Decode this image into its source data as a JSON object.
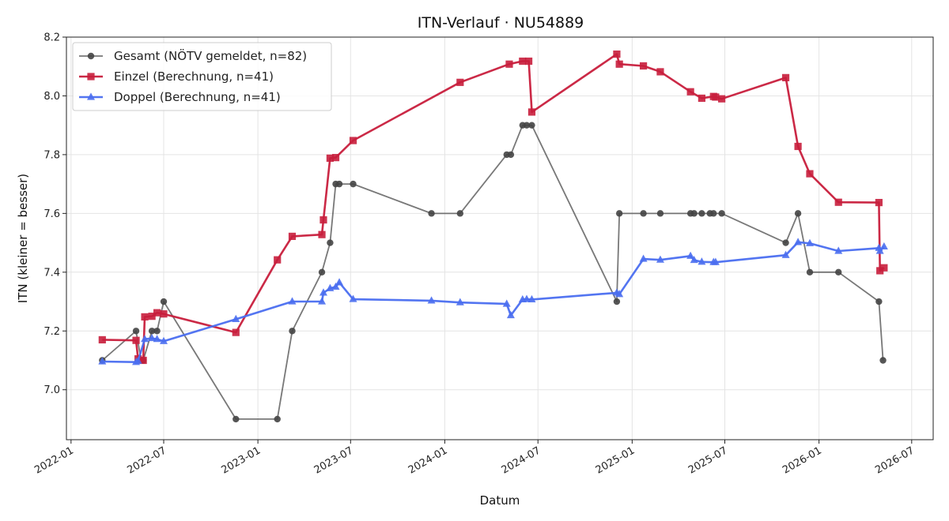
{
  "chart_data": {
    "type": "line",
    "title": "ITN-Verlauf · NU54889",
    "xlabel": "Datum",
    "ylabel": "ITN  (kleiner = besser)",
    "x_type": "date",
    "xlim": [
      "2021-12-23",
      "2026-08-12"
    ],
    "ylim": [
      6.83,
      8.2
    ],
    "y_ticks": [
      7.0,
      7.2,
      7.4,
      7.6,
      7.8,
      8.0,
      8.2
    ],
    "x_ticks": [
      "2022-01-01",
      "2022-07-01",
      "2023-01-01",
      "2023-07-01",
      "2024-01-01",
      "2024-07-01",
      "2025-01-01",
      "2025-07-01",
      "2026-01-01",
      "2026-07-01"
    ],
    "x_tick_labels": [
      "2022-01",
      "2022-07",
      "2023-01",
      "2023-07",
      "2024-01",
      "2024-07",
      "2025-01",
      "2025-07",
      "2026-01",
      "2026-07"
    ],
    "grid": true,
    "legend_position": "top-left",
    "series": [
      {
        "name": "Gesamt (NÖTV gemeldet, n=82)",
        "color": "#444444",
        "marker": "circle",
        "points": [
          [
            "2022-03-03",
            7.1
          ],
          [
            "2022-05-08",
            7.2
          ],
          [
            "2022-05-18",
            7.1
          ],
          [
            "2022-05-22",
            7.1
          ],
          [
            "2022-06-08",
            7.2
          ],
          [
            "2022-06-18",
            7.2
          ],
          [
            "2022-07-01",
            7.3
          ],
          [
            "2022-11-19",
            6.9
          ],
          [
            "2023-02-08",
            6.9
          ],
          [
            "2023-03-09",
            7.2
          ],
          [
            "2023-05-06",
            7.4
          ],
          [
            "2023-05-22",
            7.5
          ],
          [
            "2023-06-02",
            7.7
          ],
          [
            "2023-06-09",
            7.7
          ],
          [
            "2023-07-06",
            7.7
          ],
          [
            "2023-12-06",
            7.6
          ],
          [
            "2024-01-31",
            7.6
          ],
          [
            "2024-05-01",
            7.8
          ],
          [
            "2024-05-09",
            7.8
          ],
          [
            "2024-06-01",
            7.9
          ],
          [
            "2024-06-09",
            7.9
          ],
          [
            "2024-06-19",
            7.9
          ],
          [
            "2024-12-02",
            7.3
          ],
          [
            "2024-12-07",
            7.6
          ],
          [
            "2025-01-23",
            7.6
          ],
          [
            "2025-02-25",
            7.6
          ],
          [
            "2025-04-25",
            7.6
          ],
          [
            "2025-05-02",
            7.6
          ],
          [
            "2025-05-17",
            7.6
          ],
          [
            "2025-06-02",
            7.6
          ],
          [
            "2025-06-09",
            7.6
          ],
          [
            "2025-06-25",
            7.6
          ],
          [
            "2025-10-28",
            7.5
          ],
          [
            "2025-11-21",
            7.6
          ],
          [
            "2025-12-14",
            7.4
          ],
          [
            "2026-02-08",
            7.4
          ],
          [
            "2026-04-28",
            7.3
          ],
          [
            "2026-05-06",
            7.1
          ]
        ]
      },
      {
        "name": "Einzel (Berechnung, n=41)",
        "color": "#c81e3c",
        "marker": "square",
        "points": [
          [
            "2022-03-03",
            7.17
          ],
          [
            "2022-05-08",
            7.168
          ],
          [
            "2022-05-12",
            7.105
          ],
          [
            "2022-05-22",
            7.1
          ],
          [
            "2022-05-25",
            7.248
          ],
          [
            "2022-06-08",
            7.25
          ],
          [
            "2022-06-18",
            7.262
          ],
          [
            "2022-07-01",
            7.258
          ],
          [
            "2022-11-19",
            7.195
          ],
          [
            "2023-02-08",
            7.442
          ],
          [
            "2023-03-09",
            7.522
          ],
          [
            "2023-05-06",
            7.528
          ],
          [
            "2023-05-09",
            7.578
          ],
          [
            "2023-05-22",
            7.788
          ],
          [
            "2023-06-02",
            7.79
          ],
          [
            "2023-07-06",
            7.848
          ],
          [
            "2024-01-31",
            8.046
          ],
          [
            "2024-05-06",
            8.108
          ],
          [
            "2024-06-01",
            8.118
          ],
          [
            "2024-06-13",
            8.118
          ],
          [
            "2024-06-19",
            7.945
          ],
          [
            "2024-12-02",
            8.142
          ],
          [
            "2024-12-07",
            8.108
          ],
          [
            "2025-01-23",
            8.102
          ],
          [
            "2025-02-25",
            8.082
          ],
          [
            "2025-04-25",
            8.014
          ],
          [
            "2025-05-17",
            7.992
          ],
          [
            "2025-06-09",
            7.998
          ],
          [
            "2025-06-13",
            7.996
          ],
          [
            "2025-06-25",
            7.99
          ],
          [
            "2025-10-28",
            8.062
          ],
          [
            "2025-11-21",
            7.828
          ],
          [
            "2025-12-14",
            7.735
          ],
          [
            "2026-02-08",
            7.638
          ],
          [
            "2026-04-28",
            7.637
          ],
          [
            "2026-04-30",
            7.405
          ],
          [
            "2026-05-08",
            7.415
          ]
        ]
      },
      {
        "name": "Doppel (Berechnung, n=41)",
        "color": "#4a6ef0",
        "marker": "triangle",
        "points": [
          [
            "2022-03-03",
            7.096
          ],
          [
            "2022-05-08",
            7.094
          ],
          [
            "2022-05-12",
            7.098
          ],
          [
            "2022-05-25",
            7.172
          ],
          [
            "2022-06-08",
            7.175
          ],
          [
            "2022-06-18",
            7.172
          ],
          [
            "2022-07-01",
            7.165
          ],
          [
            "2022-11-19",
            7.24
          ],
          [
            "2023-03-09",
            7.3
          ],
          [
            "2023-05-06",
            7.3
          ],
          [
            "2023-05-09",
            7.33
          ],
          [
            "2023-05-22",
            7.345
          ],
          [
            "2023-06-02",
            7.35
          ],
          [
            "2023-06-09",
            7.365
          ],
          [
            "2023-07-06",
            7.308
          ],
          [
            "2023-12-06",
            7.303
          ],
          [
            "2024-01-31",
            7.297
          ],
          [
            "2024-05-01",
            7.292
          ],
          [
            "2024-05-09",
            7.253
          ],
          [
            "2024-06-01",
            7.307
          ],
          [
            "2024-06-09",
            7.308
          ],
          [
            "2024-06-19",
            7.307
          ],
          [
            "2024-12-02",
            7.33
          ],
          [
            "2024-12-07",
            7.325
          ],
          [
            "2025-01-23",
            7.445
          ],
          [
            "2025-02-25",
            7.442
          ],
          [
            "2025-04-25",
            7.455
          ],
          [
            "2025-05-02",
            7.441
          ],
          [
            "2025-05-17",
            7.435
          ],
          [
            "2025-06-09",
            7.434
          ],
          [
            "2025-06-13",
            7.434
          ],
          [
            "2025-10-28",
            7.458
          ],
          [
            "2025-11-21",
            7.502
          ],
          [
            "2025-12-14",
            7.498
          ],
          [
            "2026-02-08",
            7.472
          ],
          [
            "2026-04-28",
            7.482
          ],
          [
            "2026-04-30",
            7.472
          ],
          [
            "2026-05-08",
            7.487
          ]
        ]
      }
    ]
  }
}
